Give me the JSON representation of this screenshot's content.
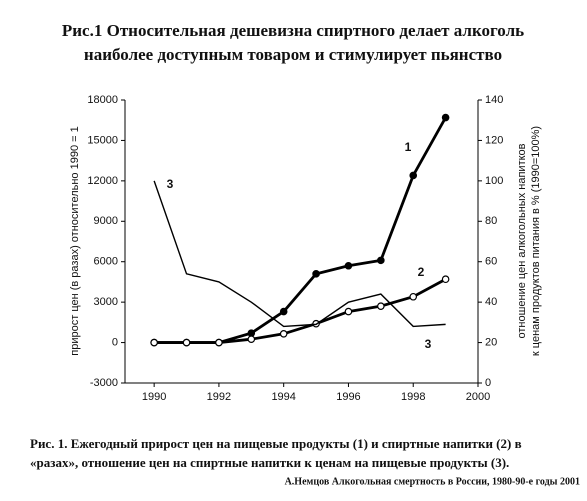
{
  "chart_data": {
    "type": "line",
    "title": [
      "Рис.1 Относительная дешевизна спиртного делает алкоголь",
      "наиболее доступным товаром и стимулирует пьянство"
    ],
    "y_label": "прирост цен (в разах) относительно 1990 = 1",
    "y2_label": [
      "отношение цен алкогольных напитков",
      "к ценам продуктов питания в % (1990=100%)"
    ],
    "x": [
      1990,
      1991,
      1992,
      1993,
      1994,
      1995,
      1996,
      1997,
      1998,
      1999
    ],
    "xlim": [
      1989.1,
      2000
    ],
    "xticks": [
      1990,
      1992,
      1994,
      1996,
      1998,
      2000
    ],
    "ylim": [
      -3000,
      18000
    ],
    "yticks": [
      -3000,
      0,
      3000,
      6000,
      9000,
      12000,
      15000,
      18000
    ],
    "y2lim": [
      0,
      140
    ],
    "y2ticks": [
      0,
      20,
      40,
      60,
      80,
      100,
      120,
      140
    ],
    "series": [
      {
        "name": "1",
        "color": "#000000",
        "marker": "filled",
        "values": [
          0,
          0,
          0,
          700,
          2300,
          5100,
          5700,
          6100,
          12400,
          16700
        ]
      },
      {
        "name": "2",
        "color": "#000000",
        "marker": "open",
        "values": [
          0,
          0,
          0,
          250,
          650,
          1400,
          2300,
          2700,
          3400,
          4700
        ]
      },
      {
        "name": "3",
        "color": "#000000",
        "axis": "y2",
        "values": [
          100,
          54,
          50,
          40,
          28,
          29,
          40,
          44,
          28,
          29
        ]
      }
    ],
    "caption": [
      "Рис. 1. Ежегодный прирост цен на пищевые продукты (1) и спиртные напитки (2) в",
      "«разах»,  отношение  цен на спиртные напитки к ценам на пищевые продукты (3)."
    ],
    "source": "А.Немцов Алкогольная смертность в России, 1980-90-е годы 2001"
  }
}
